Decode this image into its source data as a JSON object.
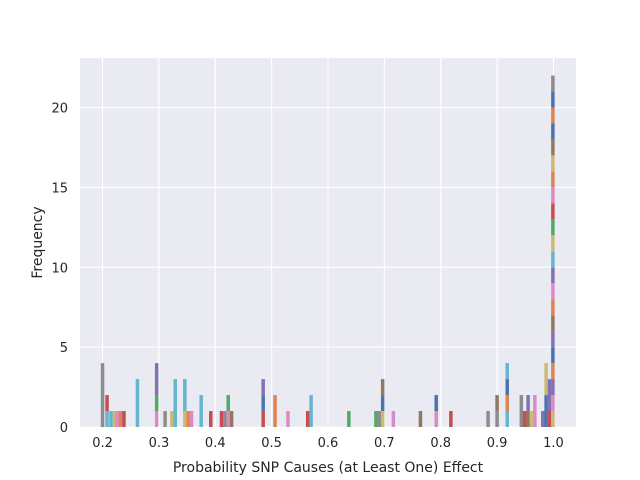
{
  "chart_data": {
    "type": "bar",
    "chart_subtype": "stacked-histogram",
    "title": "",
    "xlabel": "Probability SNP Causes (at Least One) Effect",
    "ylabel": "Frequency",
    "xlim": [
      0.16,
      1.04
    ],
    "ylim": [
      0,
      23.1
    ],
    "x_ticks": [
      0.2,
      0.3,
      0.4,
      0.5,
      0.6,
      0.7,
      0.8,
      0.9,
      1.0
    ],
    "x_tick_labels": [
      "0.2",
      "0.3",
      "0.4",
      "0.5",
      "0.6",
      "0.7",
      "0.8",
      "0.9",
      "1.0"
    ],
    "y_ticks": [
      0,
      5,
      10,
      15,
      20
    ],
    "y_tick_labels": [
      "0",
      "5",
      "10",
      "15",
      "20"
    ],
    "grid": true,
    "background": "#eaeaf2",
    "bin_width": 0.0062,
    "palette": [
      "#4c72b0",
      "#dd8452",
      "#55a868",
      "#c44e52",
      "#8172b3",
      "#937860",
      "#da8bc3",
      "#8c8c8c",
      "#ccb974",
      "#64b5cd"
    ],
    "bins": [
      {
        "x": 0.2,
        "segments": [
          {
            "color": "#8c8c8c",
            "value": 4
          }
        ]
      },
      {
        "x": 0.208,
        "segments": [
          {
            "color": "#64b5cd",
            "value": 1
          },
          {
            "color": "#c44e52",
            "value": 1
          }
        ]
      },
      {
        "x": 0.215,
        "segments": [
          {
            "color": "#64b5cd",
            "value": 1
          }
        ]
      },
      {
        "x": 0.221,
        "segments": [
          {
            "color": "#ccb974",
            "value": 1
          }
        ]
      },
      {
        "x": 0.226,
        "segments": [
          {
            "color": "#da8bc3",
            "value": 1
          }
        ]
      },
      {
        "x": 0.232,
        "segments": [
          {
            "color": "#dd8452",
            "value": 1
          }
        ]
      },
      {
        "x": 0.238,
        "segments": [
          {
            "color": "#c44e52",
            "value": 1
          }
        ]
      },
      {
        "x": 0.262,
        "segments": [
          {
            "color": "#64b5cd",
            "value": 3
          }
        ]
      },
      {
        "x": 0.296,
        "segments": [
          {
            "color": "#da8bc3",
            "value": 1
          },
          {
            "color": "#55a868",
            "value": 1
          },
          {
            "color": "#8172b3",
            "value": 2
          }
        ]
      },
      {
        "x": 0.311,
        "segments": [
          {
            "color": "#8c8c8c",
            "value": 1
          }
        ]
      },
      {
        "x": 0.323,
        "segments": [
          {
            "color": "#ccb974",
            "value": 1
          }
        ]
      },
      {
        "x": 0.329,
        "segments": [
          {
            "color": "#64b5cd",
            "value": 3
          }
        ]
      },
      {
        "x": 0.346,
        "segments": [
          {
            "color": "#ccb974",
            "value": 1
          },
          {
            "color": "#64b5cd",
            "value": 2
          }
        ]
      },
      {
        "x": 0.352,
        "segments": [
          {
            "color": "#dd8452",
            "value": 1
          }
        ]
      },
      {
        "x": 0.358,
        "segments": [
          {
            "color": "#da8bc3",
            "value": 1
          }
        ]
      },
      {
        "x": 0.375,
        "segments": [
          {
            "color": "#64b5cd",
            "value": 2
          }
        ]
      },
      {
        "x": 0.392,
        "segments": [
          {
            "color": "#c44e52",
            "value": 1
          }
        ]
      },
      {
        "x": 0.411,
        "segments": [
          {
            "color": "#c44e52",
            "value": 1
          }
        ]
      },
      {
        "x": 0.417,
        "segments": [
          {
            "color": "#8c8c8c",
            "value": 1
          }
        ]
      },
      {
        "x": 0.423,
        "segments": [
          {
            "color": "#da8bc3",
            "value": 1
          },
          {
            "color": "#55a868",
            "value": 1
          }
        ]
      },
      {
        "x": 0.429,
        "segments": [
          {
            "color": "#937860",
            "value": 1
          }
        ]
      },
      {
        "x": 0.485,
        "segments": [
          {
            "color": "#c44e52",
            "value": 1
          },
          {
            "color": "#4c72b0",
            "value": 1
          },
          {
            "color": "#8172b3",
            "value": 1
          }
        ]
      },
      {
        "x": 0.506,
        "segments": [
          {
            "color": "#dd8452",
            "value": 2
          }
        ]
      },
      {
        "x": 0.529,
        "segments": [
          {
            "color": "#da8bc3",
            "value": 1
          }
        ]
      },
      {
        "x": 0.564,
        "segments": [
          {
            "color": "#c44e52",
            "value": 1
          }
        ]
      },
      {
        "x": 0.57,
        "segments": [
          {
            "color": "#64b5cd",
            "value": 2
          }
        ]
      },
      {
        "x": 0.637,
        "segments": [
          {
            "color": "#55a868",
            "value": 1
          }
        ]
      },
      {
        "x": 0.685,
        "segments": [
          {
            "color": "#55a868",
            "value": 1
          }
        ]
      },
      {
        "x": 0.691,
        "segments": [
          {
            "color": "#8c8c8c",
            "value": 1
          }
        ]
      },
      {
        "x": 0.697,
        "segments": [
          {
            "color": "#ccb974",
            "value": 1
          },
          {
            "color": "#4c72b0",
            "value": 1
          },
          {
            "color": "#937860",
            "value": 1
          }
        ]
      },
      {
        "x": 0.716,
        "segments": [
          {
            "color": "#da8bc3",
            "value": 1
          }
        ]
      },
      {
        "x": 0.764,
        "segments": [
          {
            "color": "#937860",
            "value": 1
          }
        ]
      },
      {
        "x": 0.792,
        "segments": [
          {
            "color": "#da8bc3",
            "value": 1
          },
          {
            "color": "#4c72b0",
            "value": 1
          }
        ]
      },
      {
        "x": 0.818,
        "segments": [
          {
            "color": "#c44e52",
            "value": 1
          }
        ]
      },
      {
        "x": 0.884,
        "segments": [
          {
            "color": "#8c8c8c",
            "value": 1
          }
        ]
      },
      {
        "x": 0.9,
        "segments": [
          {
            "color": "#8c8c8c",
            "value": 1
          },
          {
            "color": "#937860",
            "value": 1
          }
        ]
      },
      {
        "x": 0.918,
        "segments": [
          {
            "color": "#64b5cd",
            "value": 1
          },
          {
            "color": "#dd8452",
            "value": 1
          },
          {
            "color": "#4c72b0",
            "value": 1
          },
          {
            "color": "#64b5cd",
            "value": 1
          }
        ]
      },
      {
        "x": 0.943,
        "segments": [
          {
            "color": "#8c8c8c",
            "value": 2
          }
        ]
      },
      {
        "x": 0.949,
        "segments": [
          {
            "color": "#c44e52",
            "value": 1
          }
        ]
      },
      {
        "x": 0.955,
        "segments": [
          {
            "color": "#937860",
            "value": 1
          },
          {
            "color": "#8172b3",
            "value": 1
          }
        ]
      },
      {
        "x": 0.961,
        "segments": [
          {
            "color": "#ccb974",
            "value": 1
          }
        ]
      },
      {
        "x": 0.967,
        "segments": [
          {
            "color": "#da8bc3",
            "value": 2
          }
        ]
      },
      {
        "x": 0.981,
        "segments": [
          {
            "color": "#8172b3",
            "value": 1
          }
        ]
      },
      {
        "x": 0.987,
        "segments": [
          {
            "color": "#4c72b0",
            "value": 2
          },
          {
            "color": "#ccb974",
            "value": 2
          }
        ]
      },
      {
        "x": 0.993,
        "segments": [
          {
            "color": "#c44e52",
            "value": 1
          },
          {
            "color": "#8172b3",
            "value": 2
          }
        ]
      },
      {
        "x": 0.999,
        "segments": [
          {
            "color": "#ccb974",
            "value": 1
          },
          {
            "color": "#da8bc3",
            "value": 1
          },
          {
            "color": "#8172b3",
            "value": 1
          },
          {
            "color": "#dd8452",
            "value": 1
          },
          {
            "color": "#4c72b0",
            "value": 1
          },
          {
            "color": "#8172b3",
            "value": 1
          },
          {
            "color": "#937860",
            "value": 1
          },
          {
            "color": "#dd8452",
            "value": 1
          },
          {
            "color": "#da8bc3",
            "value": 1
          },
          {
            "color": "#8172b3",
            "value": 1
          },
          {
            "color": "#64b5cd",
            "value": 1
          },
          {
            "color": "#ccb974",
            "value": 1
          },
          {
            "color": "#55a868",
            "value": 1
          },
          {
            "color": "#c44e52",
            "value": 1
          },
          {
            "color": "#da8bc3",
            "value": 1
          },
          {
            "color": "#dd8452",
            "value": 1
          },
          {
            "color": "#ccb974",
            "value": 1
          },
          {
            "color": "#937860",
            "value": 1
          },
          {
            "color": "#4c72b0",
            "value": 1
          },
          {
            "color": "#dd8452",
            "value": 1
          },
          {
            "color": "#4c72b0",
            "value": 1
          },
          {
            "color": "#8c8c8c",
            "value": 1
          }
        ]
      }
    ]
  }
}
